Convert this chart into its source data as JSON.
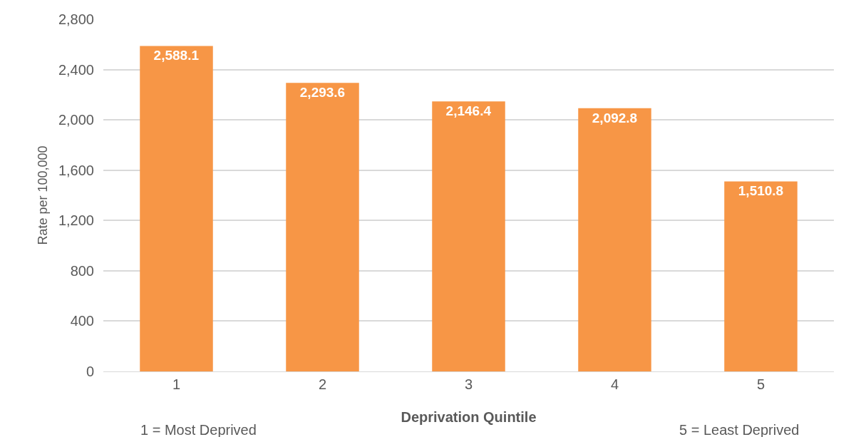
{
  "chart_data": {
    "type": "bar",
    "xlabel": "Deprivation Quintile",
    "ylabel": "Rate per 100,000",
    "categories": [
      "1",
      "2",
      "3",
      "4",
      "5"
    ],
    "values": [
      2588.1,
      2293.6,
      2146.4,
      2092.8,
      1510.8
    ],
    "value_labels": [
      "2,588.1",
      "2,293.6",
      "2,146.4",
      "2,092.8",
      "1,510.8"
    ],
    "color": "#f79646",
    "ylim": [
      0,
      2800
    ],
    "yticks": [
      {
        "value": 0,
        "label": "0"
      },
      {
        "value": 400,
        "label": "400"
      },
      {
        "value": 800,
        "label": "800"
      },
      {
        "value": 1200,
        "label": "1,200"
      },
      {
        "value": 1600,
        "label": "1,600"
      },
      {
        "value": 2000,
        "label": "2,000"
      },
      {
        "value": 2400,
        "label": "2,400"
      },
      {
        "value": 2800,
        "label": "2,800"
      }
    ],
    "grid": "y",
    "legend": false,
    "annotations": [
      "1 = Most Deprived",
      "5 = Least Deprived"
    ]
  }
}
